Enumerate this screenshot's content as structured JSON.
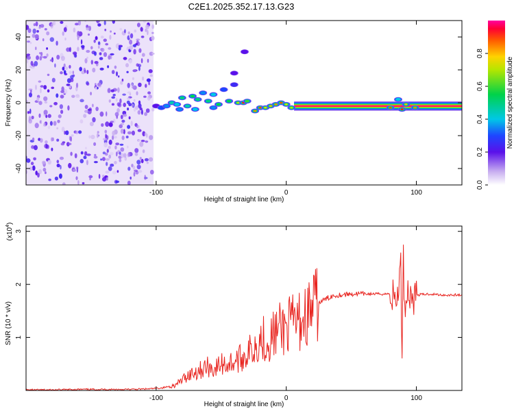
{
  "title": "C2E1.2025.352.17.13.G23",
  "chart_data": [
    {
      "type": "heatmap",
      "xlabel": "Height of straight line (km)",
      "ylabel": "Frequency (Hz)",
      "xlim": [
        -200,
        135
      ],
      "ylim": [
        -50,
        50
      ],
      "x_ticks": [
        "-100",
        "0",
        "100"
      ],
      "x_tick_values": [
        -100,
        0,
        100
      ],
      "y_ticks": [
        "40",
        "20",
        "0",
        "-20",
        "-40"
      ],
      "y_tick_values": [
        40,
        20,
        0,
        -20,
        -40
      ],
      "noise_region_x": [
        -200,
        -102
      ],
      "dots": [
        {
          "x": -100,
          "y": -2,
          "v": 0.2
        },
        {
          "x": -96,
          "y": -3,
          "v": 0.3
        },
        {
          "x": -92,
          "y": -2,
          "v": 0.35
        },
        {
          "x": -88,
          "y": 0,
          "v": 0.45
        },
        {
          "x": -84,
          "y": -1,
          "v": 0.4
        },
        {
          "x": -80,
          "y": 3,
          "v": 0.5
        },
        {
          "x": -76,
          "y": -2,
          "v": 0.45
        },
        {
          "x": -72,
          "y": 4,
          "v": 0.55
        },
        {
          "x": -68,
          "y": 2,
          "v": 0.5
        },
        {
          "x": -64,
          "y": 6,
          "v": 0.35
        },
        {
          "x": -60,
          "y": 1,
          "v": 0.5
        },
        {
          "x": -56,
          "y": 5,
          "v": 0.4
        },
        {
          "x": -52,
          "y": -1,
          "v": 0.55
        },
        {
          "x": -48,
          "y": 8,
          "v": 0.3
        },
        {
          "x": -44,
          "y": 1,
          "v": 0.55
        },
        {
          "x": -40,
          "y": 11,
          "v": 0.25
        },
        {
          "x": -37,
          "y": 0,
          "v": 0.7
        },
        {
          "x": -33,
          "y": 0,
          "v": 0.95
        },
        {
          "x": -30,
          "y": 1,
          "v": 0.6
        },
        {
          "x": -24,
          "y": -5,
          "v": 0.85
        },
        {
          "x": -20,
          "y": -3,
          "v": 0.9
        },
        {
          "x": -16,
          "y": -3,
          "v": 0.75
        },
        {
          "x": -12,
          "y": -2,
          "v": 0.8
        },
        {
          "x": -8,
          "y": -1,
          "v": 0.85
        },
        {
          "x": -4,
          "y": 0,
          "v": 0.9
        },
        {
          "x": 0,
          "y": -1,
          "v": 0.75
        },
        {
          "x": 4,
          "y": -3,
          "v": 0.7
        },
        {
          "x": -40,
          "y": 18,
          "v": 0.2
        },
        {
          "x": -32,
          "y": 31,
          "v": 0.2
        },
        {
          "x": -56,
          "y": -3,
          "v": 0.35
        },
        {
          "x": -70,
          "y": -4,
          "v": 0.4
        },
        {
          "x": -82,
          "y": -4,
          "v": 0.35
        }
      ],
      "band": {
        "x_start": 6,
        "x_end": 135,
        "y": -2,
        "v": 1.0
      },
      "band_spots": [
        {
          "x": 80,
          "y": -3,
          "v": 0.9
        },
        {
          "x": 86,
          "y": 2,
          "v": 0.4
        },
        {
          "x": 89,
          "y": -4,
          "v": 0.95
        },
        {
          "x": 92,
          "y": -1,
          "v": 0.8
        },
        {
          "x": 99,
          "y": -3,
          "v": 0.85
        }
      ],
      "colorbar": {
        "label": "Normalized spectral amplitude",
        "ticks": [
          "0.0",
          "0.2",
          "0.4",
          "0.6",
          "0.8"
        ],
        "tick_values": [
          0.0,
          0.2,
          0.4,
          0.6,
          0.8
        ],
        "range": [
          0,
          1
        ]
      }
    },
    {
      "type": "line",
      "xlabel": "Height of straight line (km)",
      "ylabel": "SNR (10 * v/v)",
      "multiplier_label": "(x10",
      "multiplier_exp": "4",
      "multiplier_close": ")",
      "xlim": [
        -200,
        135
      ],
      "ylim": [
        0,
        3.1
      ],
      "x_ticks": [
        "-100",
        "0",
        "100"
      ],
      "x_tick_values": [
        -100,
        0,
        100
      ],
      "y_ticks": [
        "3",
        "2",
        "1"
      ],
      "y_tick_values": [
        3,
        2,
        1
      ],
      "color": "#e8231e",
      "series": [
        {
          "name": "SNR",
          "x": [
            -200,
            -180,
            -160,
            -140,
            -120,
            -105,
            -95,
            -85,
            -80,
            -75,
            -70,
            -65,
            -60,
            -55,
            -50,
            -45,
            -40,
            -35,
            -30,
            -25,
            -22,
            -18,
            -15,
            -10,
            -5,
            0,
            5,
            10,
            15,
            20,
            25,
            30,
            35,
            40,
            50,
            60,
            70,
            80,
            85,
            88,
            89,
            90,
            91,
            93,
            96,
            100,
            110,
            120,
            135
          ],
          "y": [
            0.01,
            0.01,
            0.02,
            0.02,
            0.02,
            0.03,
            0.05,
            0.1,
            0.2,
            0.3,
            0.35,
            0.4,
            0.45,
            0.4,
            0.5,
            0.5,
            0.55,
            0.6,
            0.7,
            0.8,
            0.95,
            1.0,
            0.9,
            1.05,
            1.15,
            1.2,
            1.25,
            1.3,
            1.4,
            1.55,
            1.65,
            1.72,
            1.78,
            1.8,
            1.82,
            1.82,
            1.82,
            1.82,
            1.7,
            2.3,
            0.8,
            2.6,
            1.5,
            1.9,
            1.75,
            1.8,
            1.82,
            1.8,
            1.8
          ]
        }
      ]
    }
  ]
}
